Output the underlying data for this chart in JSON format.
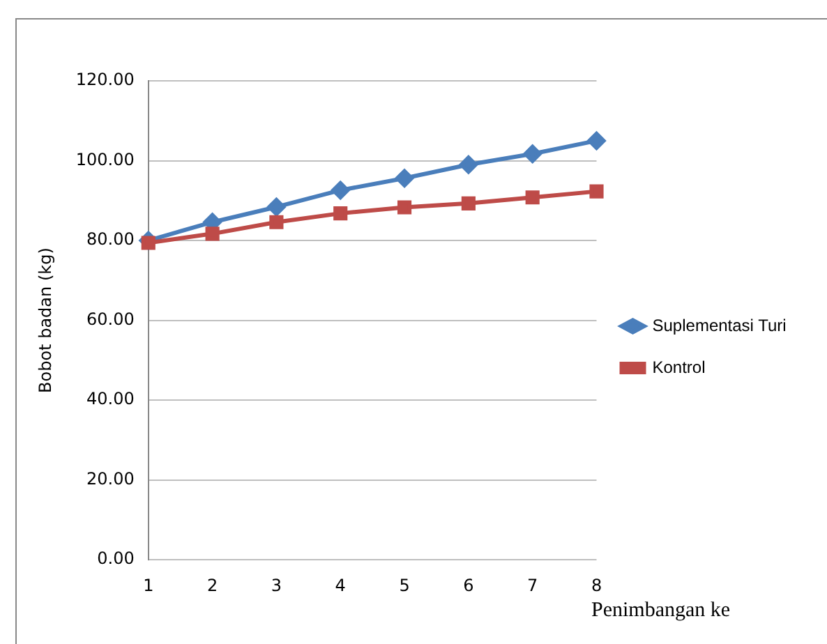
{
  "chart_data": {
    "type": "line",
    "xlabel": "Penimbangan ke",
    "ylabel": "Bobot badan (kg)",
    "categories": [
      "1",
      "2",
      "3",
      "4",
      "5",
      "6",
      "7",
      "8"
    ],
    "series": [
      {
        "name": "Suplementasi Turi",
        "color": "#4a7ebb",
        "marker": "diamond",
        "values": [
          80.0,
          84.6,
          88.4,
          92.6,
          95.6,
          99.0,
          101.7,
          105.0
        ]
      },
      {
        "name": "Kontrol",
        "color": "#be4b48",
        "marker": "square",
        "values": [
          79.4,
          81.7,
          84.6,
          86.8,
          88.3,
          89.3,
          90.8,
          92.3
        ]
      }
    ],
    "ylim": [
      0,
      120
    ],
    "yticks": [
      {
        "value": 0,
        "label": "0.00"
      },
      {
        "value": 20,
        "label": "20.00"
      },
      {
        "value": 40,
        "label": "40.00"
      },
      {
        "value": 60,
        "label": "60.00"
      },
      {
        "value": 80,
        "label": "80.00"
      },
      {
        "value": 100,
        "label": "100.00"
      },
      {
        "value": 120,
        "label": "120.00"
      }
    ],
    "grid": "y",
    "legend": "right",
    "line_style": "solid"
  }
}
